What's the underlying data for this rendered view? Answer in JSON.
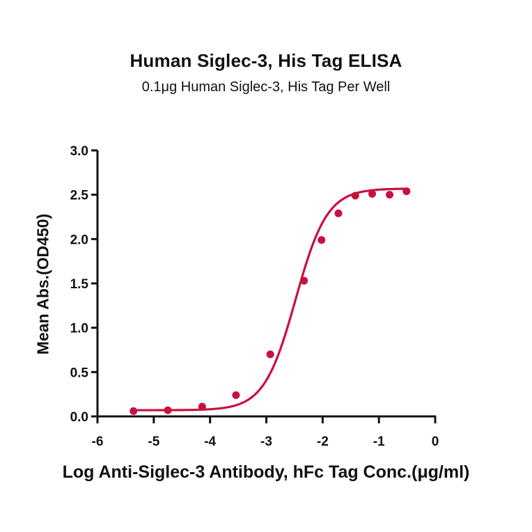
{
  "chart_data": {
    "type": "scatter",
    "title": "Human Siglec-3, His Tag ELISA",
    "subtitle": "0.1μg Human Siglec-3, His Tag Per Well",
    "xlabel": "Log Anti-Siglec-3 Antibody, hFc Tag Conc.(μg/ml)",
    "ylabel": "Mean Abs.(OD450)",
    "xlim": [
      -6,
      0
    ],
    "ylim": [
      0,
      3.0
    ],
    "x_ticks": [
      "-6",
      "-5",
      "-4",
      "-3",
      "-2",
      "-1",
      "0"
    ],
    "y_ticks": [
      "0.0",
      "0.5",
      "1.0",
      "1.5",
      "2.0",
      "2.5",
      "3.0"
    ],
    "grid": false,
    "legend": null,
    "series": [
      {
        "name": "Mean Abs.(OD450)",
        "color": "#c8103e",
        "fit": "4-parameter logistic curve",
        "x": [
          -5.36,
          -4.75,
          -4.14,
          -3.54,
          -2.93,
          -2.33,
          -2.02,
          -1.72,
          -1.42,
          -1.12,
          -0.81,
          -0.51
        ],
        "y": [
          0.06,
          0.07,
          0.11,
          0.24,
          0.7,
          1.53,
          1.99,
          2.29,
          2.49,
          2.51,
          2.5,
          2.54
        ]
      }
    ]
  }
}
